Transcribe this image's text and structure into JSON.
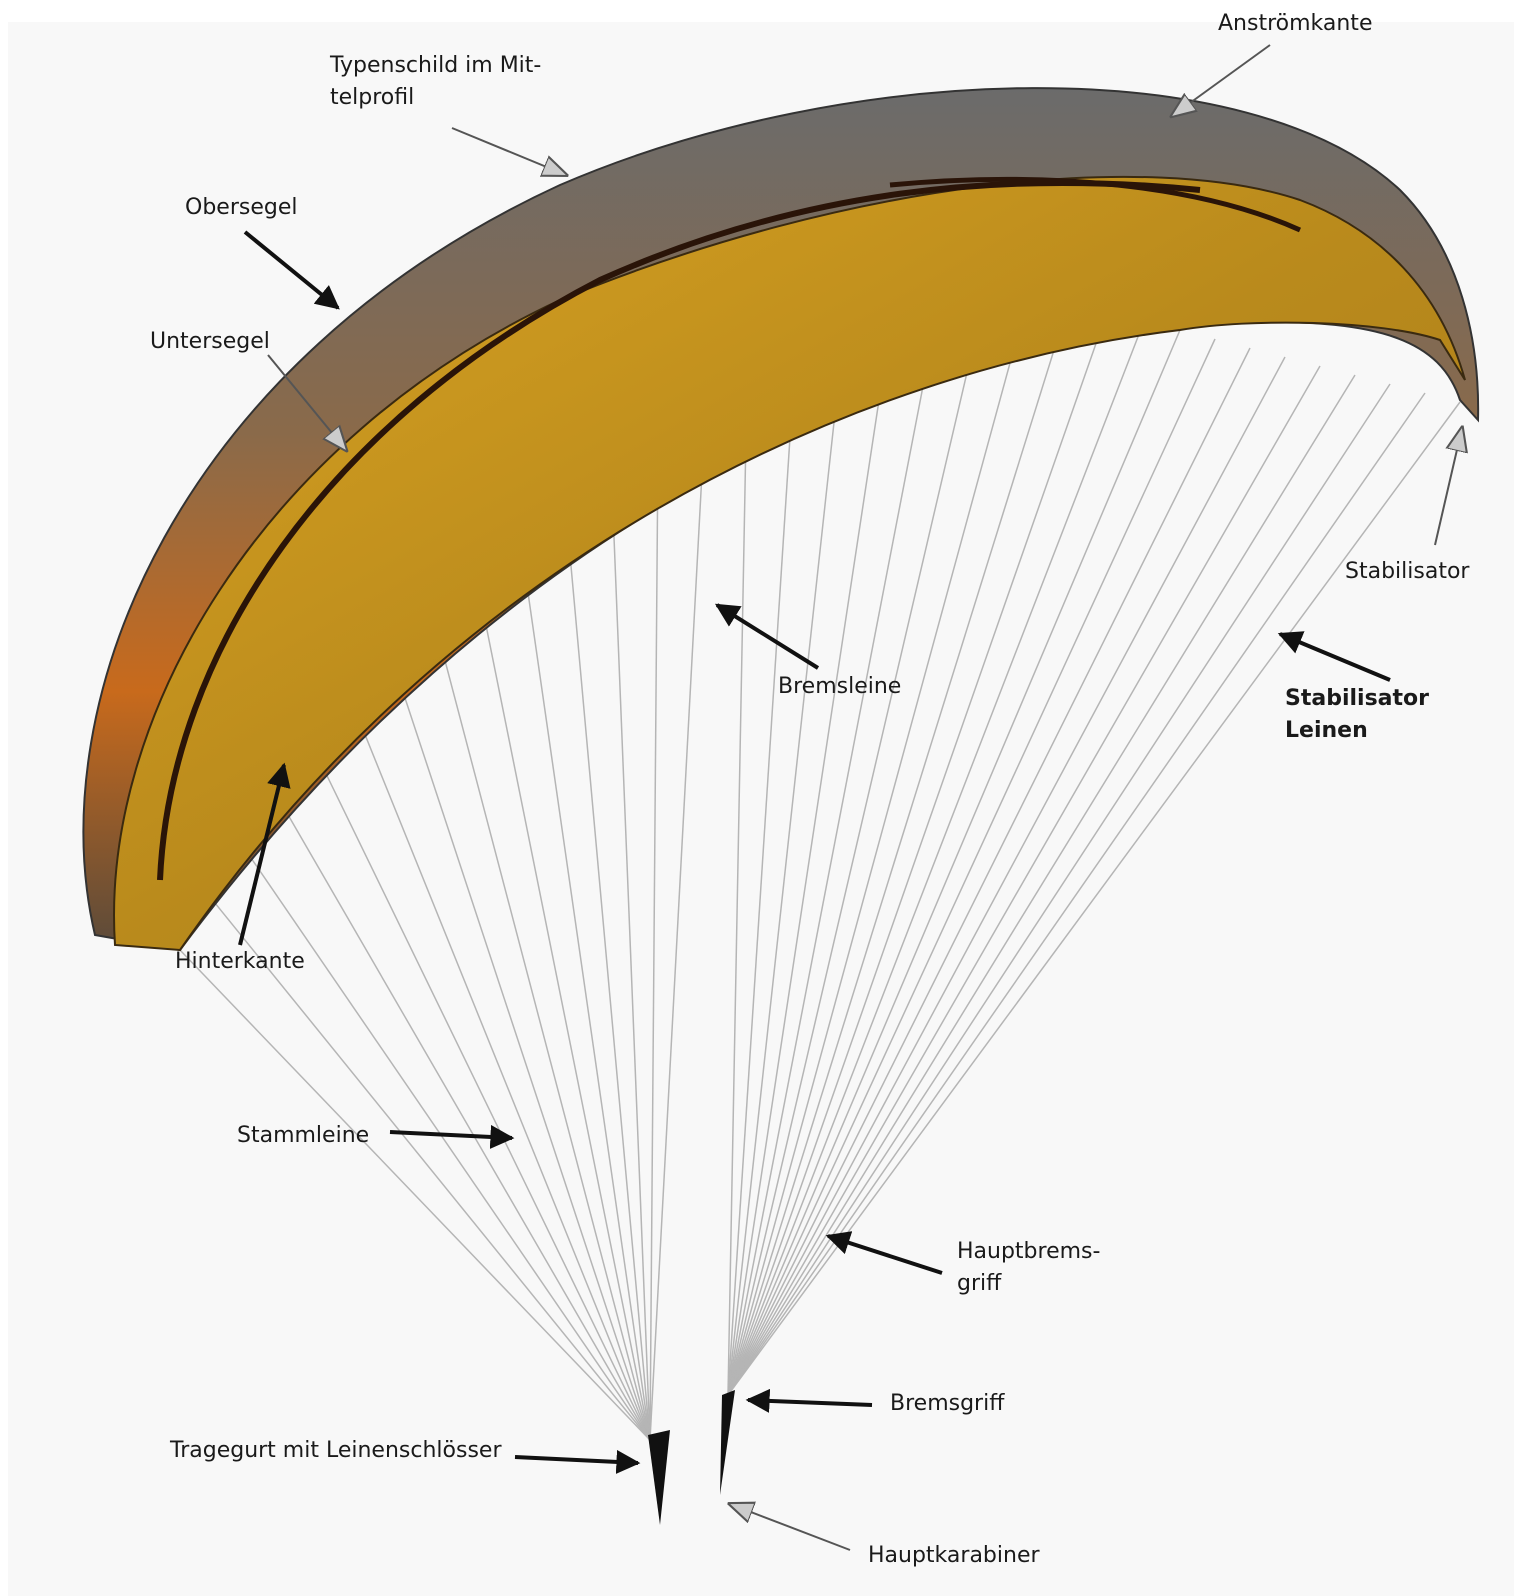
{
  "labels": {
    "leading_edge": {
      "lines": [
        "Anströmkante"
      ]
    },
    "type_plate": {
      "lines": [
        "Typenschild im Mit-",
        "telprofil"
      ]
    },
    "top_surface": {
      "lines": [
        "Obersegel"
      ]
    },
    "bottom_surface": {
      "lines": [
        "Untersegel"
      ]
    },
    "stabilizer": {
      "lines": [
        "Stabilisator"
      ]
    },
    "brake_line": {
      "lines": [
        "Bremsleine"
      ]
    },
    "stabilizer_lines": {
      "lines": [
        "Stabilisator",
        "Leinen"
      ]
    },
    "trailing_edge": {
      "lines": [
        "Hinterkante"
      ]
    },
    "main_line": {
      "lines": [
        "Stammleine"
      ]
    },
    "main_brake_line": {
      "lines": [
        "Hauptbrems-",
        "griff"
      ]
    },
    "brake_handle": {
      "lines": [
        "Bremsgriff"
      ]
    },
    "riser": {
      "lines": [
        "Tragegurt mit Leinenschlösser"
      ]
    },
    "carabiner": {
      "lines": [
        "Hauptkarabiner"
      ]
    }
  }
}
